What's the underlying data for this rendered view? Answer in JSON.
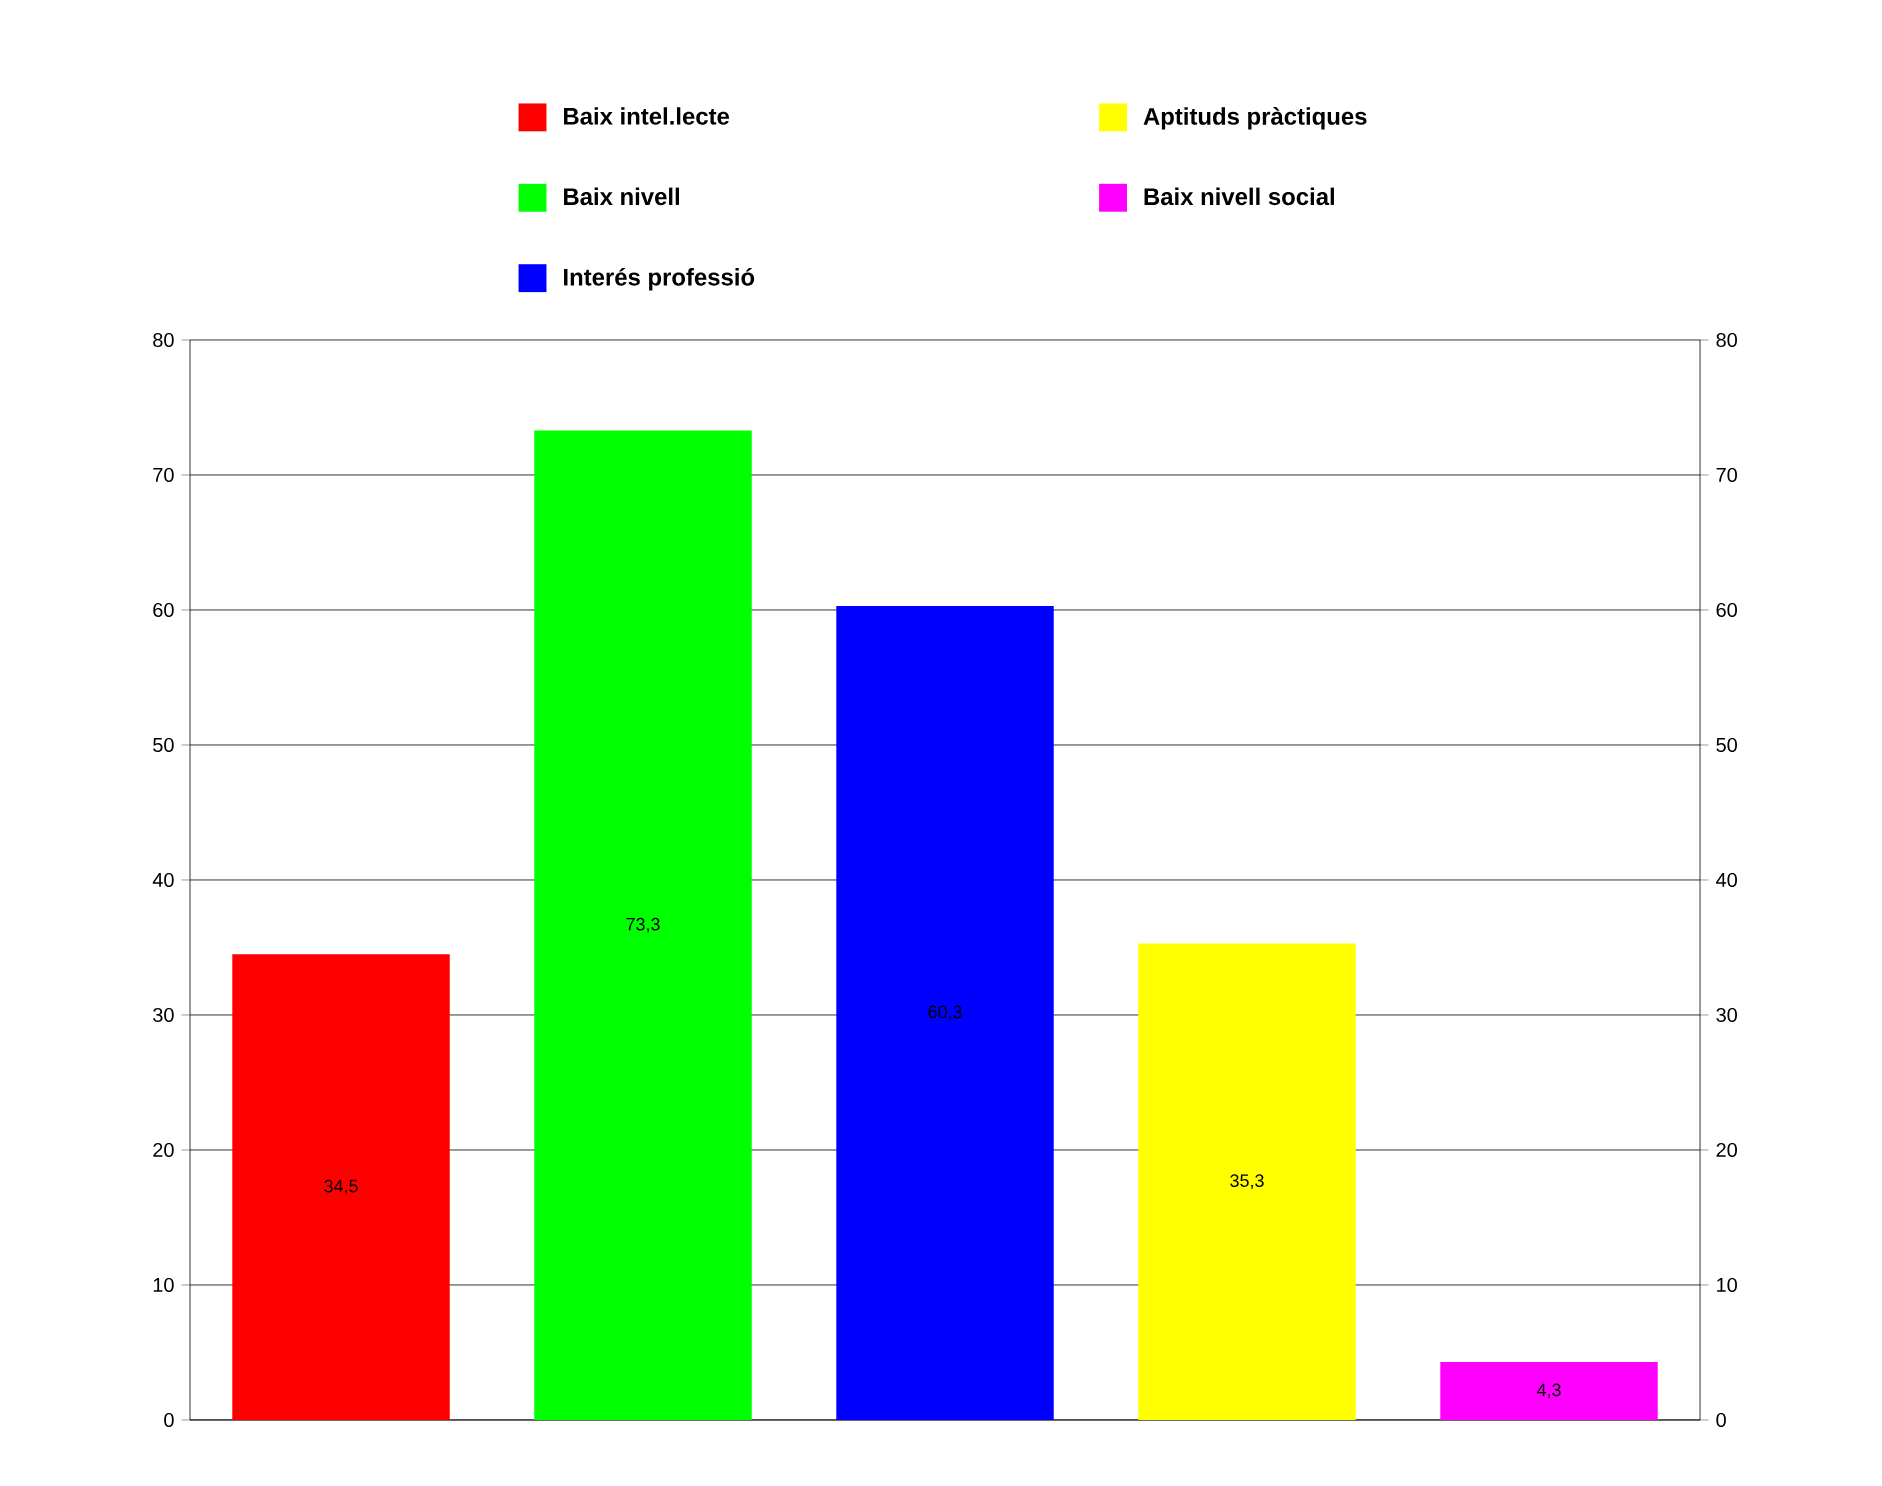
{
  "chart_data": {
    "type": "bar",
    "categories": [
      null,
      null,
      null,
      null,
      null
    ],
    "series": [
      {
        "name": "Baix intel.lecte",
        "color": "#ff0000",
        "values": [
          34.5,
          null,
          null,
          null,
          null
        ],
        "value_labels": [
          "34,5",
          null,
          null,
          null,
          null
        ]
      },
      {
        "name": "Baix nivell",
        "color": "#00ff00",
        "values": [
          null,
          73.3,
          null,
          null,
          null
        ],
        "value_labels": [
          null,
          "73,3",
          null,
          null,
          null
        ]
      },
      {
        "name": "Interés professió",
        "color": "#0000ff",
        "values": [
          null,
          null,
          60.3,
          null,
          null
        ],
        "value_labels": [
          null,
          null,
          "60,3",
          null,
          null
        ]
      },
      {
        "name": "Aptituds pràctiques",
        "color": "#ffff00",
        "values": [
          null,
          null,
          null,
          35.3,
          null
        ],
        "value_labels": [
          null,
          null,
          null,
          "35,3",
          null
        ]
      },
      {
        "name": "Baix nivell social",
        "color": "#ff00ff",
        "values": [
          null,
          null,
          null,
          null,
          4.3
        ],
        "value_labels": [
          null,
          null,
          null,
          null,
          "4,3"
        ]
      }
    ],
    "ylim": [
      0,
      80
    ],
    "yticks": [
      0,
      10,
      20,
      30,
      40,
      50,
      60,
      70,
      80
    ],
    "y2lim": [
      0,
      80
    ],
    "y2ticks": [
      0,
      10,
      20,
      30,
      40,
      50,
      60,
      70,
      80
    ],
    "grid": "y",
    "legend": "top"
  }
}
